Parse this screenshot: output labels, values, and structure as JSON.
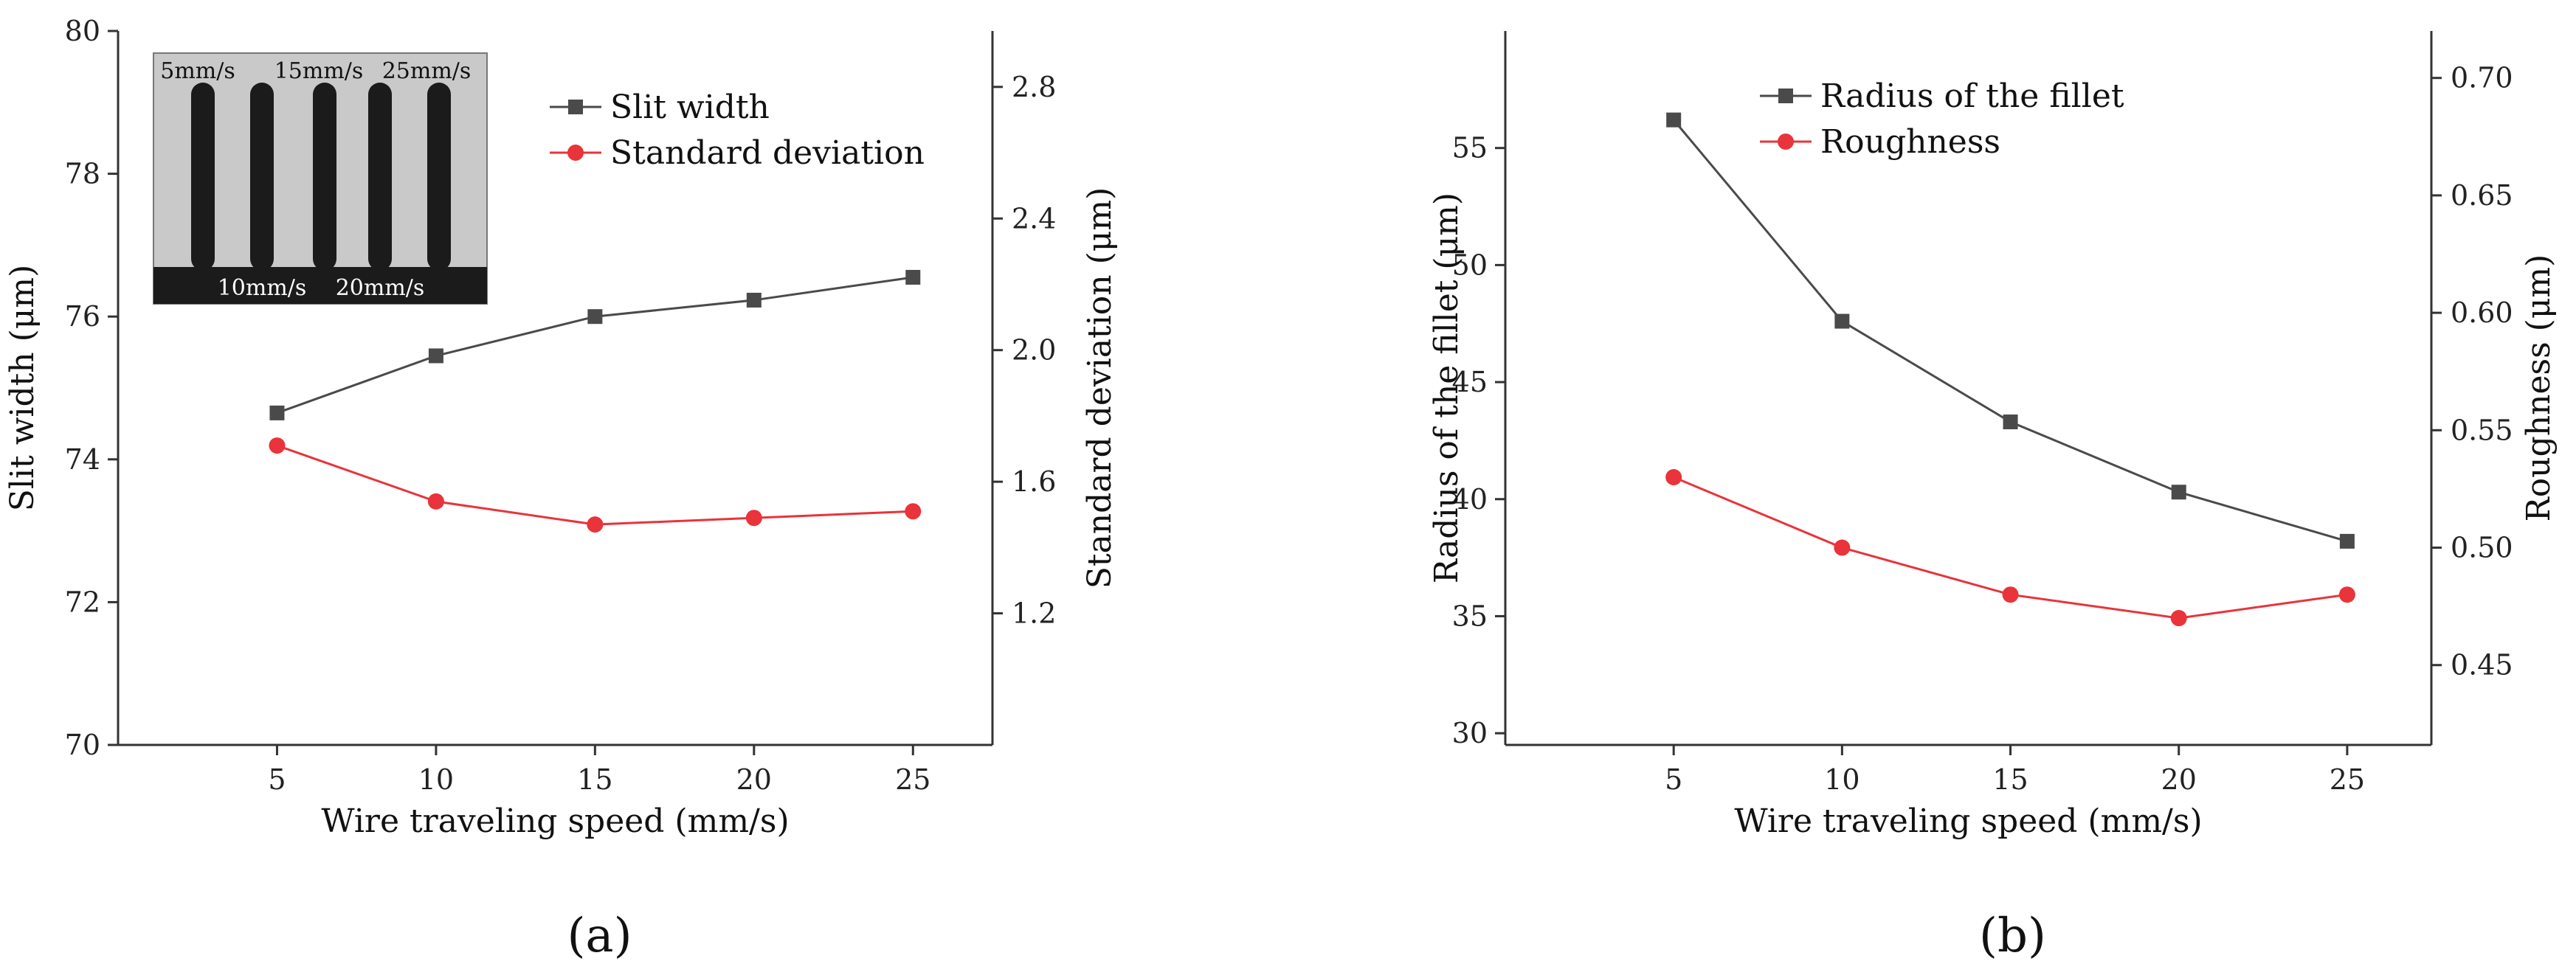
{
  "chart_data": [
    {
      "id": "a",
      "type": "line",
      "panel_label": "(a)",
      "xlabel": "Wire traveling speed (mm/s)",
      "ylabel": "Slit width (μm)",
      "y2label": "Standard deviation (μm)",
      "x": [
        5,
        10,
        15,
        20,
        25
      ],
      "xticks": [
        "5",
        "10",
        "15",
        "20",
        "25"
      ],
      "xlim": [
        0,
        27.5
      ],
      "ylim": [
        70,
        80
      ],
      "yticks": [
        "70",
        "72",
        "74",
        "76",
        "78",
        "80"
      ],
      "y2lim": [
        0.8,
        2.97
      ],
      "y2ticks": [
        "1.2",
        "1.6",
        "2.0",
        "2.4",
        "2.8"
      ],
      "grid": false,
      "legend_position": "top-right",
      "series": [
        {
          "name": "Slit width",
          "axis": "left",
          "values": [
            74.65,
            75.45,
            76.0,
            76.23,
            76.55
          ],
          "color": "#4a4a4a",
          "marker": "square"
        },
        {
          "name": "Standard deviation",
          "axis": "right",
          "values": [
            1.71,
            1.54,
            1.47,
            1.49,
            1.51
          ],
          "color": "#e8343a",
          "marker": "circle"
        }
      ],
      "inset": {
        "top_labels": [
          "5mm/s",
          "15mm/s",
          "25mm/s"
        ],
        "bottom_labels": [
          "10mm/s",
          "20mm/s"
        ]
      }
    },
    {
      "id": "b",
      "type": "line",
      "panel_label": "(b)",
      "xlabel": "Wire traveling speed (mm/s)",
      "ylabel": "Radius of the fillet (μm)",
      "y2label": "Roughness (μm)",
      "x": [
        5,
        10,
        15,
        20,
        25
      ],
      "xticks": [
        "5",
        "10",
        "15",
        "20",
        "25"
      ],
      "xlim": [
        0,
        27.5
      ],
      "ylim": [
        29.5,
        60
      ],
      "yticks": [
        "30",
        "35",
        "40",
        "45",
        "50",
        "55"
      ],
      "y2lim": [
        0.416,
        0.72
      ],
      "y2ticks": [
        "0.45",
        "0.50",
        "0.55",
        "0.60",
        "0.65",
        "0.70"
      ],
      "grid": false,
      "legend_position": "top-left",
      "series": [
        {
          "name": "Radius of the fillet",
          "axis": "left",
          "values": [
            56.2,
            47.6,
            43.3,
            40.3,
            38.2
          ],
          "color": "#4a4a4a",
          "marker": "square"
        },
        {
          "name": "Roughness",
          "axis": "right",
          "values": [
            0.53,
            0.5,
            0.48,
            0.47,
            0.48
          ],
          "color": "#e8343a",
          "marker": "circle"
        }
      ]
    }
  ]
}
